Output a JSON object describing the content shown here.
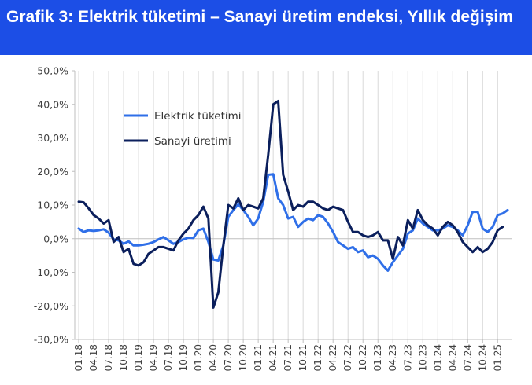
{
  "header": {
    "title": "Grafik 3: Elektrik tüketimi – Sanayi üretim endeksi, Yıllık değişim",
    "background_color": "#1c4ee6"
  },
  "chart_data": {
    "type": "line",
    "title": "Grafik 3: Elektrik tüketimi – Sanayi üretim endeksi, Yıllık değişim",
    "xlabel": "",
    "ylabel": "",
    "ylim": [
      -30,
      50
    ],
    "yticks": [
      -30,
      -20,
      -10,
      0,
      10,
      20,
      30,
      40,
      50
    ],
    "ytick_labels": [
      "-30,0%",
      "-20,0%",
      "-10,0%",
      "0,0%",
      "10,0%",
      "20,0%",
      "30,0%",
      "40,0%",
      "50,0%"
    ],
    "grid": "vertical",
    "legend_position": "upper-left",
    "x_tick_labels": [
      "01.18",
      "04.18",
      "07.18",
      "10.18",
      "01.19",
      "04.19",
      "07.19",
      "10.19",
      "01.20",
      "04.20",
      "07.20",
      "10.20",
      "01.21",
      "04.21",
      "07.21",
      "10.21",
      "01.22",
      "04.22",
      "07.22",
      "10.22",
      "01.23",
      "04.23",
      "07.23",
      "10.23",
      "01.24",
      "04.24",
      "07.24",
      "10.24",
      "01.25"
    ],
    "x": [
      "01.18",
      "02.18",
      "03.18",
      "04.18",
      "05.18",
      "06.18",
      "07.18",
      "08.18",
      "09.18",
      "10.18",
      "11.18",
      "12.18",
      "01.19",
      "02.19",
      "03.19",
      "04.19",
      "05.19",
      "06.19",
      "07.19",
      "08.19",
      "09.19",
      "10.19",
      "11.19",
      "12.19",
      "01.20",
      "02.20",
      "03.20",
      "04.20",
      "05.20",
      "06.20",
      "07.20",
      "08.20",
      "09.20",
      "10.20",
      "11.20",
      "12.20",
      "01.21",
      "02.21",
      "03.21",
      "04.21",
      "05.21",
      "06.21",
      "07.21",
      "08.21",
      "09.21",
      "10.21",
      "11.21",
      "12.21",
      "01.22",
      "02.22",
      "03.22",
      "04.22",
      "05.22",
      "06.22",
      "07.22",
      "08.22",
      "09.22",
      "10.22",
      "11.22",
      "12.22",
      "01.23",
      "02.23",
      "03.23",
      "04.23",
      "05.23",
      "06.23",
      "07.23",
      "08.23",
      "09.23",
      "10.23",
      "11.23",
      "12.23",
      "01.24",
      "02.24",
      "03.24",
      "04.24",
      "05.24",
      "06.24",
      "07.24",
      "08.24",
      "09.24",
      "10.24",
      "11.24",
      "12.24",
      "01.25",
      "02.25",
      "03.25"
    ],
    "series": [
      {
        "name": "Elektrik tüketimi",
        "color": "#2f6fe8",
        "values": [
          3.0,
          2.0,
          2.5,
          2.3,
          2.5,
          2.8,
          1.8,
          -0.2,
          -0.5,
          -1.5,
          -0.8,
          -2.0,
          -2.0,
          -1.8,
          -1.5,
          -1.0,
          -0.2,
          0.5,
          -0.5,
          -1.5,
          -1.0,
          -0.2,
          0.3,
          0.2,
          2.5,
          3.0,
          -1.0,
          -6.2,
          -6.5,
          -2.0,
          6.5,
          8.5,
          10.2,
          8.5,
          6.5,
          4.0,
          6.0,
          11.0,
          19.0,
          19.2,
          12.0,
          10.0,
          6.0,
          6.5,
          3.5,
          5.0,
          6.0,
          5.5,
          7.0,
          6.5,
          4.5,
          2.0,
          -1.0,
          -2.0,
          -3.0,
          -2.5,
          -4.0,
          -3.5,
          -5.5,
          -5.0,
          -6.0,
          -8.0,
          -9.5,
          -7.0,
          -5.0,
          -3.0,
          1.5,
          2.5,
          6.0,
          4.5,
          3.5,
          2.5,
          2.5,
          3.0,
          4.0,
          3.5,
          2.5,
          1.0,
          4.0,
          8.0,
          8.0,
          3.0,
          2.0,
          3.5,
          7.0,
          7.5,
          8.5
        ]
      },
      {
        "name": "Sanayi üretimi",
        "color": "#0b1f5c",
        "values": [
          11.0,
          10.8,
          9.0,
          7.0,
          6.0,
          4.5,
          5.5,
          -1.0,
          0.5,
          -4.0,
          -3.0,
          -7.5,
          -8.0,
          -7.0,
          -4.5,
          -3.5,
          -2.5,
          -2.5,
          -3.0,
          -3.5,
          -0.5,
          1.5,
          3.0,
          5.5,
          7.0,
          9.5,
          6.0,
          -20.5,
          -16.0,
          -2.0,
          10.0,
          9.0,
          12.0,
          8.5,
          10.0,
          9.5,
          9.0,
          12.0,
          25.0,
          40.0,
          41.0,
          19.0,
          14.0,
          8.5,
          10.0,
          9.5,
          11.0,
          11.0,
          10.0,
          9.0,
          8.5,
          9.5,
          9.0,
          8.5,
          5.0,
          2.0,
          2.0,
          1.0,
          0.5,
          1.0,
          2.0,
          -0.5,
          -0.5,
          -6.0,
          0.5,
          -2.0,
          5.5,
          3.0,
          8.5,
          5.5,
          4.0,
          3.0,
          1.0,
          3.5,
          5.0,
          4.0,
          2.0,
          -1.0,
          -2.5,
          -4.0,
          -2.5,
          -4.0,
          -3.0,
          -1.0,
          2.5,
          3.5,
          null
        ]
      }
    ]
  }
}
